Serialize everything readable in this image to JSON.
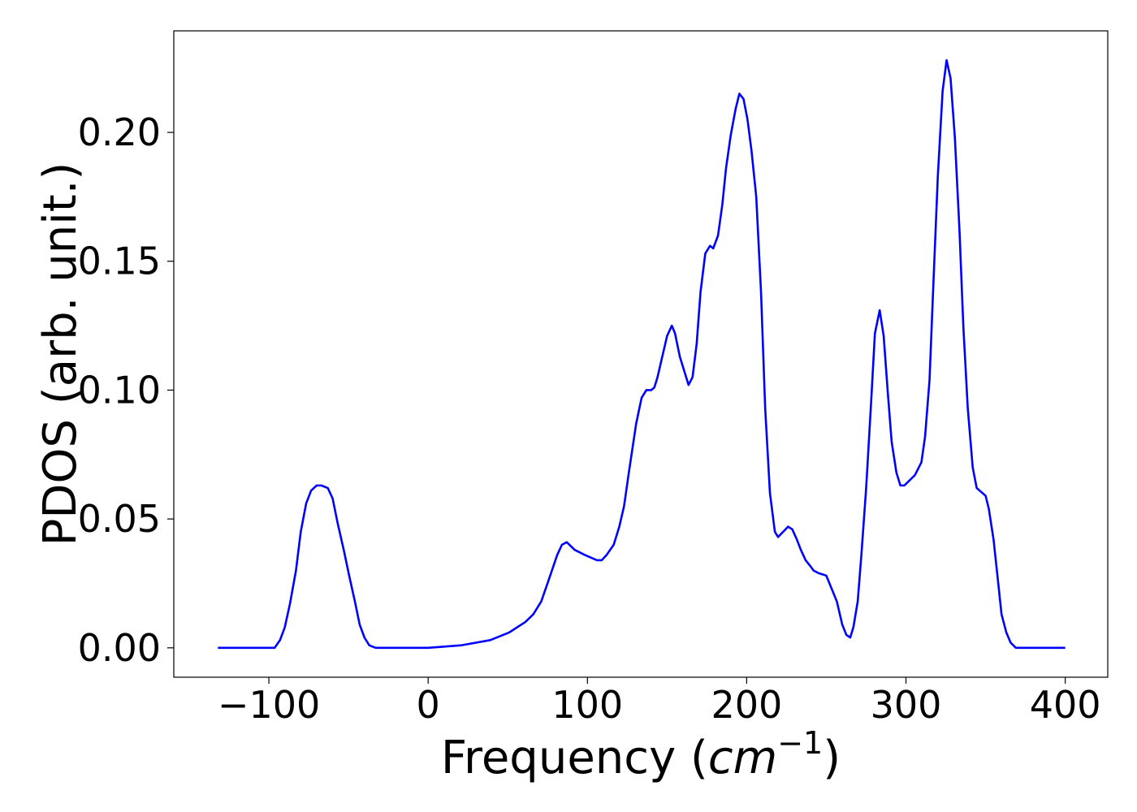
{
  "chart_data": {
    "type": "line",
    "xlabel": [
      "Frequency (",
      "cm",
      "−1",
      ")"
    ],
    "ylabel": "PDOS (arb. unit.)",
    "xlim": [
      -159.7,
      426.7
    ],
    "ylim": [
      -0.0114,
      0.2394
    ],
    "xticks": [
      {
        "value": -100,
        "label": "−100"
      },
      0,
      100,
      200,
      300,
      400
    ],
    "yticks": [
      {
        "value": 0,
        "label": "0.00"
      },
      {
        "value": 0.05,
        "label": "0.05"
      },
      {
        "value": 0.1,
        "label": "0.10"
      },
      {
        "value": 0.15,
        "label": "0.15"
      },
      {
        "value": 0.2,
        "label": "0.20"
      }
    ],
    "series": [
      {
        "color": "#0000ff",
        "x": [
          -132,
          -96.4,
          -93,
          -90,
          -86.8,
          -83,
          -80,
          -76.6,
          -73.5,
          -70,
          -67,
          -63,
          -60,
          -56.7,
          -53,
          -49.6,
          -46,
          -43,
          -40,
          -37,
          -33,
          0,
          21,
          39,
          51,
          61,
          66,
          71,
          75.5,
          81,
          84,
          87,
          92,
          98.5,
          106,
          109,
          112,
          116.5,
          120,
          123,
          126,
          130.6,
          134,
          137,
          140,
          142,
          144,
          147,
          150,
          153,
          155,
          158,
          161,
          163.5,
          166,
          168.6,
          171,
          174,
          177,
          179,
          182,
          184.7,
          187,
          190,
          193,
          195.4,
          198,
          200.5,
          203,
          206,
          209,
          211.6,
          214.6,
          217.7,
          219.7,
          226,
          228.6,
          231.5,
          234,
          237,
          239.6,
          242,
          245,
          250,
          256.6,
          260,
          262.6,
          265,
          267,
          269.7,
          272,
          275,
          278,
          280.5,
          283.5,
          286,
          288.6,
          291,
          294,
          296.5,
          299,
          305.6,
          309.7,
          312,
          314.8,
          317,
          320,
          323,
          325.5,
          328,
          330.7,
          333.6,
          336,
          338.8,
          341.9,
          344.4,
          350,
          352,
          355,
          357.6,
          360,
          363,
          365.7,
          369,
          400
        ],
        "values": [
          0,
          0,
          0.003,
          0.008,
          0.017,
          0.03,
          0.045,
          0.056,
          0.061,
          0.063,
          0.063,
          0.062,
          0.058,
          0.048,
          0.038,
          0.028,
          0.018,
          0.009,
          0.004,
          0.001,
          0,
          0,
          0.001,
          0.003,
          0.006,
          0.01,
          0.013,
          0.018,
          0.026,
          0.036,
          0.04,
          0.041,
          0.038,
          0.036,
          0.034,
          0.034,
          0.036,
          0.04,
          0.047,
          0.055,
          0.068,
          0.087,
          0.097,
          0.1,
          0.1,
          0.101,
          0.105,
          0.113,
          0.121,
          0.125,
          0.122,
          0.113,
          0.107,
          0.102,
          0.105,
          0.118,
          0.138,
          0.153,
          0.156,
          0.155,
          0.16,
          0.172,
          0.186,
          0.199,
          0.209,
          0.215,
          0.213,
          0.205,
          0.193,
          0.175,
          0.138,
          0.093,
          0.06,
          0.045,
          0.043,
          0.047,
          0.046,
          0.042,
          0.038,
          0.034,
          0.032,
          0.03,
          0.029,
          0.028,
          0.018,
          0.009,
          0.005,
          0.004,
          0.008,
          0.018,
          0.036,
          0.062,
          0.094,
          0.122,
          0.131,
          0.121,
          0.099,
          0.08,
          0.068,
          0.063,
          0.063,
          0.067,
          0.072,
          0.082,
          0.104,
          0.138,
          0.183,
          0.216,
          0.228,
          0.221,
          0.198,
          0.162,
          0.125,
          0.093,
          0.07,
          0.062,
          0.059,
          0.054,
          0.042,
          0.027,
          0.013,
          0.006,
          0.002,
          0,
          0
        ]
      }
    ]
  }
}
